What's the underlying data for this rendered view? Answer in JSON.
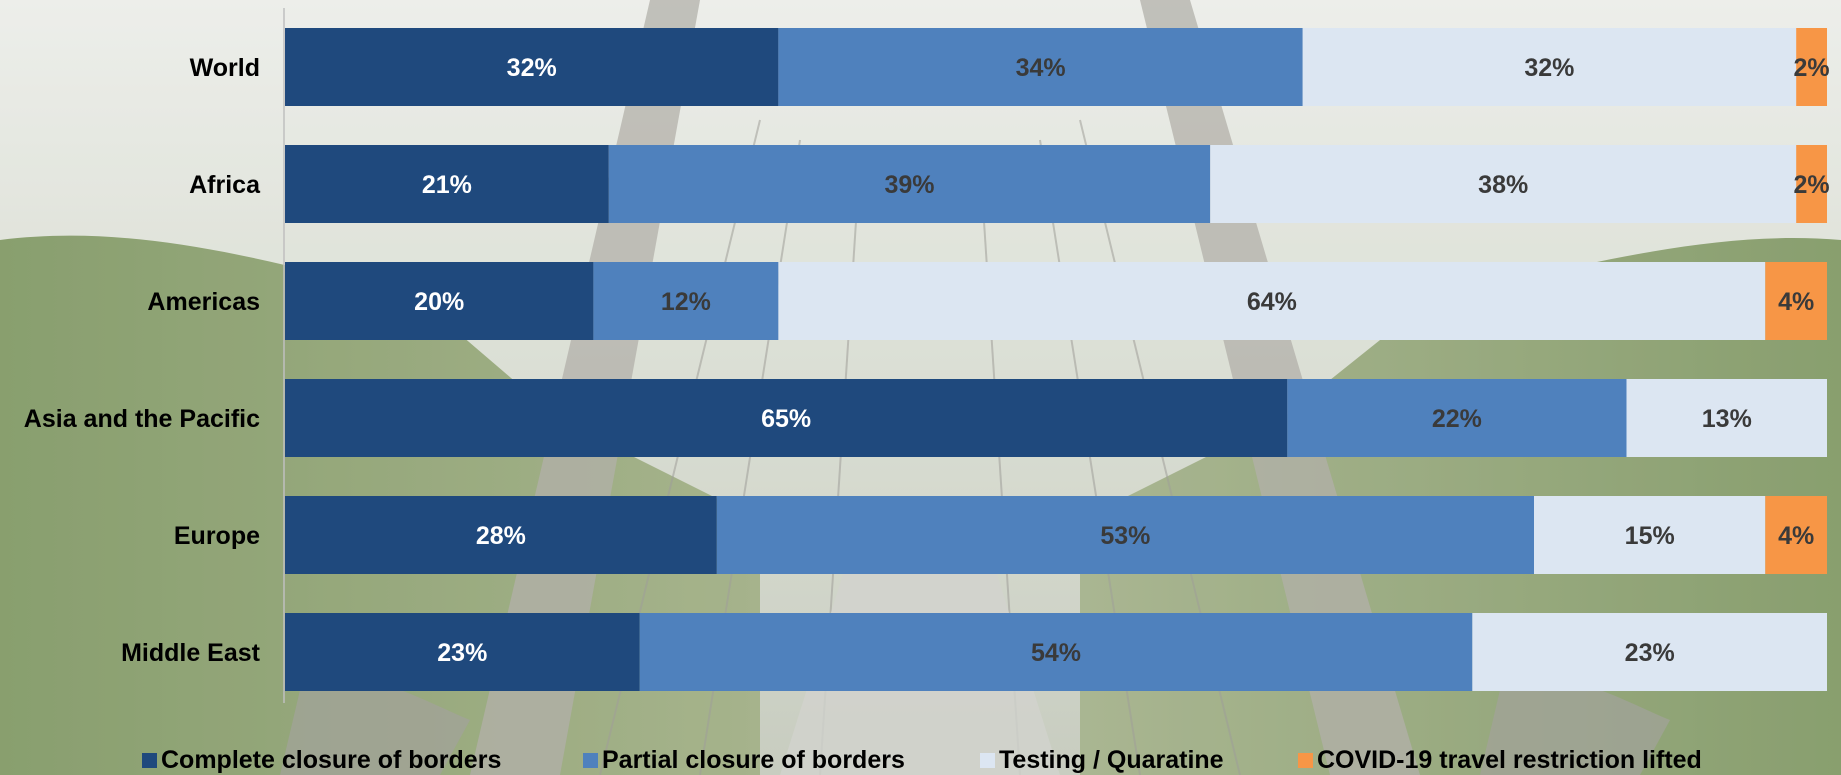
{
  "chart_data": {
    "type": "bar",
    "orientation": "horizontal",
    "stacked": true,
    "categories": [
      "World",
      "Africa",
      "Americas",
      "Asia and the Pacific",
      "Europe",
      "Middle East"
    ],
    "series": [
      {
        "name": "Complete closure of borders",
        "color": "#1f497d",
        "label_color": "#ffffff",
        "values": [
          32,
          21,
          20,
          65,
          28,
          23
        ],
        "labels": [
          "32%",
          "21%",
          "20%",
          "65%",
          "28%",
          "23%"
        ]
      },
      {
        "name": "Partial closure of borders",
        "color": "#4f81bd",
        "label_color": "#3a3a3a",
        "values": [
          34,
          39,
          12,
          22,
          53,
          54
        ],
        "labels": [
          "34%",
          "39%",
          "12%",
          "22%",
          "53%",
          "54%"
        ]
      },
      {
        "name": "Testing / Quaratine",
        "color": "#dce6f2",
        "label_color": "#3a3a3a",
        "values": [
          32,
          38,
          64,
          13,
          15,
          23
        ],
        "labels": [
          "32%",
          "38%",
          "64%",
          "13%",
          "15%",
          "23%"
        ]
      },
      {
        "name": "COVID-19 travel restriction lifted",
        "color": "#f79646",
        "label_color": "#3a3a3a",
        "values": [
          2,
          2,
          4,
          0,
          4,
          0
        ],
        "labels": [
          "2%",
          "2%",
          "4%",
          "",
          "4%",
          ""
        ]
      }
    ],
    "xlim": [
      0,
      100
    ],
    "grid": false,
    "legend_position": "bottom"
  },
  "legend": {
    "items": [
      {
        "label": "Complete closure of borders",
        "color": "#1f497d"
      },
      {
        "label": "Partial closure of borders",
        "color": "#4f81bd"
      },
      {
        "label": "Testing / Quaratine",
        "color": "#dce6f2"
      },
      {
        "label": "COVID-19 travel restriction lifted",
        "color": "#f79646"
      }
    ]
  }
}
